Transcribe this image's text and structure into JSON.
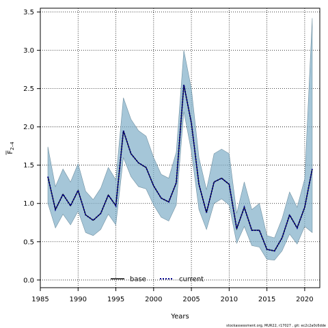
{
  "chart_data": {
    "type": "line",
    "xlabel": "Years",
    "ylabel_main": "F",
    "ylabel_sub": "2–4",
    "xlim": [
      1985,
      2022
    ],
    "ylim": [
      -0.1,
      3.55
    ],
    "x_ticks": [
      1985,
      1990,
      1995,
      2000,
      2005,
      2010,
      2015,
      2020
    ],
    "y_ticks": [
      0.0,
      0.5,
      1.0,
      1.5,
      2.0,
      2.5,
      3.0,
      3.5
    ],
    "grid": true,
    "legend_placement": "bottom-center",
    "x": [
      1986,
      1987,
      1988,
      1989,
      1990,
      1991,
      1992,
      1993,
      1994,
      1995,
      1996,
      1997,
      1998,
      1999,
      2000,
      2001,
      2002,
      2003,
      2004,
      2005,
      2006,
      2007,
      2008,
      2009,
      2010,
      2011,
      2012,
      2013,
      2014,
      2015,
      2016,
      2017,
      2018,
      2019,
      2020,
      2021
    ],
    "series": [
      {
        "name": "base",
        "color": "#000000",
        "style": "solid",
        "values": [
          1.35,
          0.92,
          1.12,
          0.97,
          1.17,
          0.85,
          0.78,
          0.87,
          1.11,
          0.97,
          1.95,
          1.65,
          1.53,
          1.47,
          1.23,
          1.07,
          1.02,
          1.27,
          2.55,
          2.05,
          1.25,
          0.88,
          1.28,
          1.33,
          1.25,
          0.67,
          0.95,
          0.65,
          0.65,
          0.4,
          0.38,
          0.55,
          0.85,
          0.68,
          0.95,
          1.45
        ]
      },
      {
        "name": "current",
        "color": "#00008b",
        "style": "dotted",
        "values": [
          1.35,
          0.92,
          1.12,
          0.97,
          1.17,
          0.85,
          0.78,
          0.87,
          1.11,
          0.97,
          1.95,
          1.65,
          1.53,
          1.47,
          1.23,
          1.07,
          1.02,
          1.27,
          2.55,
          2.05,
          1.25,
          0.88,
          1.28,
          1.33,
          1.25,
          0.67,
          0.95,
          0.65,
          0.65,
          0.4,
          0.38,
          0.55,
          0.85,
          0.68,
          0.95,
          1.45
        ]
      }
    ],
    "band": {
      "color": "#7faec8",
      "upper": [
        1.74,
        1.22,
        1.45,
        1.28,
        1.52,
        1.16,
        1.05,
        1.2,
        1.47,
        1.31,
        2.38,
        2.1,
        1.95,
        1.88,
        1.6,
        1.38,
        1.33,
        1.67,
        3.0,
        2.5,
        1.6,
        1.18,
        1.65,
        1.71,
        1.65,
        0.87,
        1.28,
        0.92,
        1.0,
        0.58,
        0.55,
        0.8,
        1.15,
        0.95,
        1.32,
        3.42
      ],
      "lower": [
        1.0,
        0.68,
        0.86,
        0.72,
        0.9,
        0.62,
        0.58,
        0.66,
        0.86,
        0.72,
        1.6,
        1.35,
        1.22,
        1.19,
        0.98,
        0.82,
        0.77,
        0.98,
        2.2,
        1.68,
        0.92,
        0.66,
        1.0,
        1.06,
        0.98,
        0.48,
        0.7,
        0.45,
        0.43,
        0.27,
        0.26,
        0.38,
        0.6,
        0.47,
        0.7,
        0.62
      ]
    }
  },
  "credit": "stockassessment.org, MUR22, r17027 , git: ec2c2a0c6dde"
}
